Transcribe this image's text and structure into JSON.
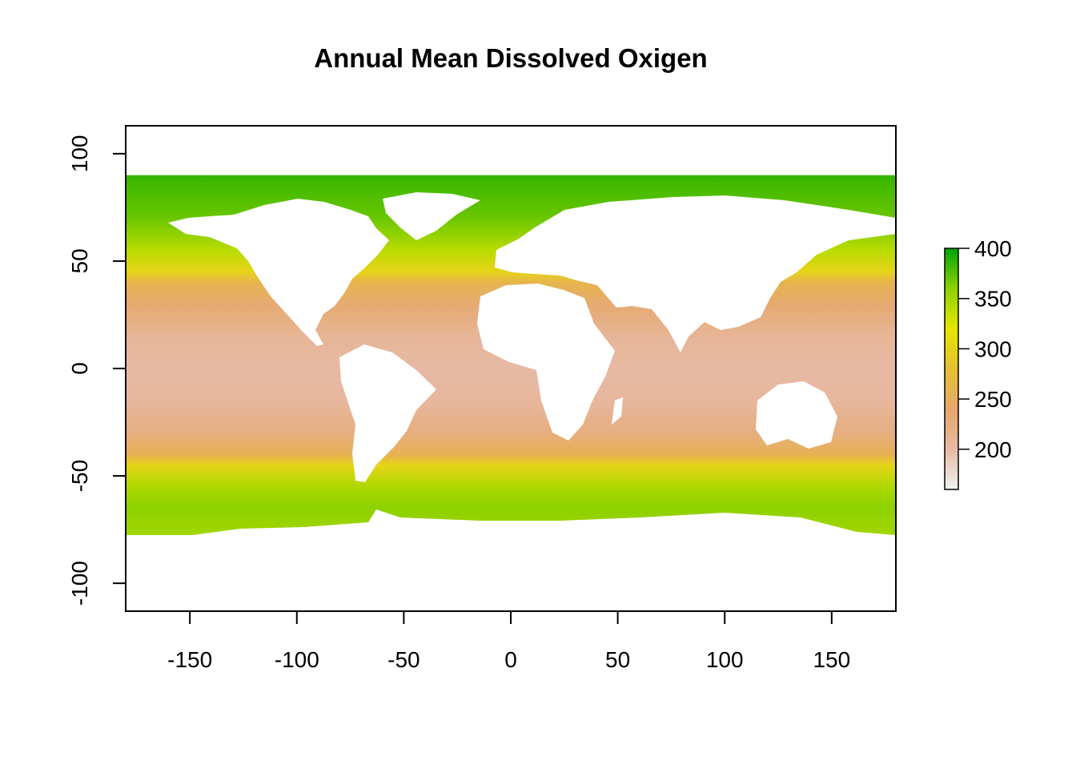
{
  "chart_data": {
    "type": "heatmap",
    "title": "Annual Mean Dissolved Oxigen",
    "xlabel": "",
    "ylabel": "",
    "xlim": [
      -180,
      180
    ],
    "ylim": [
      -113,
      113
    ],
    "data_extent": {
      "lon": [
        -180,
        180
      ],
      "lat": [
        -78,
        90
      ]
    },
    "x_ticks": [
      -150,
      -100,
      -50,
      0,
      50,
      100,
      150
    ],
    "y_ticks": [
      -100,
      -50,
      0,
      50,
      100
    ],
    "legend": {
      "position": "right",
      "ticks": [
        200,
        250,
        300,
        350,
        400
      ],
      "range": [
        160,
        400
      ],
      "colors": [
        "#f2f2f2",
        "#e7b9a4",
        "#e6a86a",
        "#e6c030",
        "#e6e600",
        "#8dd100",
        "#00a600"
      ]
    },
    "zonal_profile": {
      "lat": [
        90,
        70,
        55,
        45,
        40,
        30,
        15,
        0,
        -15,
        -30,
        -40,
        -45,
        -55,
        -65,
        -78
      ],
      "oxygen": [
        385,
        370,
        340,
        300,
        260,
        235,
        210,
        200,
        205,
        225,
        255,
        300,
        345,
        360,
        350
      ]
    },
    "grid": false
  }
}
